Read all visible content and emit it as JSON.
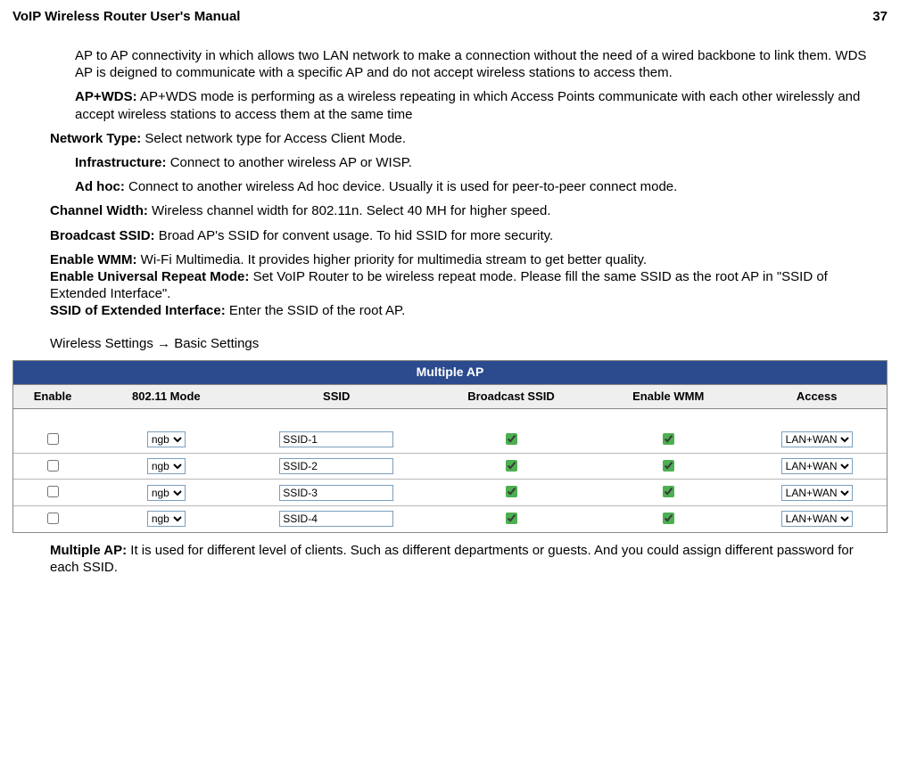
{
  "header": {
    "title": "VoIP Wireless Router User's Manual",
    "page": "37"
  },
  "text": {
    "ap2ap": "AP to AP connectivity in which allows two LAN network to make a connection without the need of a wired backbone to link them. WDS AP is deigned to communicate with a specific AP and do not accept wireless stations to access them.",
    "apwds_label": "AP+WDS:",
    "apwds_text": " AP+WDS mode is performing as a wireless repeating in which Access Points communicate with each other wirelessly and accept wireless stations to access them at the same time",
    "nettype_label": "Network Type:",
    "nettype_text": " Select network type for Access Client Mode.",
    "infra_label": "Infrastructure:",
    "infra_text": " Connect to another wireless AP or WISP.",
    "adhoc_label": "Ad hoc:",
    "adhoc_text": " Connect to another wireless Ad hoc device. Usually it is used for peer-to-peer connect mode.",
    "chw_label": "Channel Width:",
    "chw_text": " Wireless channel width for 802.11n. Select 40 MH for higher speed.",
    "bssid_label": "Broadcast SSID:",
    "bssid_text": " Broad AP's SSID for convent usage. To hid SSID for more security.",
    "wmm_label": "Enable WMM:",
    "wmm_text": " Wi-Fi Multimedia. It provides higher priority for multimedia stream to get better quality.",
    "urm_label": "Enable Universal Repeat Mode:",
    "urm_text": " Set VoIP Router to be wireless repeat mode. Please fill the same SSID as the root AP in \"SSID of Extended Interface\".",
    "sei_label": "SSID of Extended Interface:",
    "sei_text": " Enter the SSID of the root AP.",
    "nav": "Wireless Settings  →  Basic Settings",
    "map_label": "Multiple AP:",
    "map_text": " It is used for different level of clients. Such as different departments or guests. And you could assign different password for each SSID."
  },
  "table": {
    "title": "Multiple AP",
    "title_bg": "#2c4b8e",
    "cols": {
      "enable": "Enable",
      "mode": "802.11 Mode",
      "ssid": "SSID",
      "bssid": "Broadcast SSID",
      "wmm": "Enable WMM",
      "access": "Access"
    },
    "col_widths": {
      "enable": "9%",
      "mode": "17%",
      "ssid": "22%",
      "bssid": "18%",
      "wmm": "18%",
      "access": "16%"
    },
    "mode_option": "ngb",
    "access_option": "LAN+WAN",
    "rows": [
      {
        "ssid": "SSID-1",
        "enable": false,
        "bssid": true,
        "wmm": true
      },
      {
        "ssid": "SSID-2",
        "enable": false,
        "bssid": true,
        "wmm": true
      },
      {
        "ssid": "SSID-3",
        "enable": false,
        "bssid": true,
        "wmm": true
      },
      {
        "ssid": "SSID-4",
        "enable": false,
        "bssid": true,
        "wmm": true
      }
    ]
  }
}
